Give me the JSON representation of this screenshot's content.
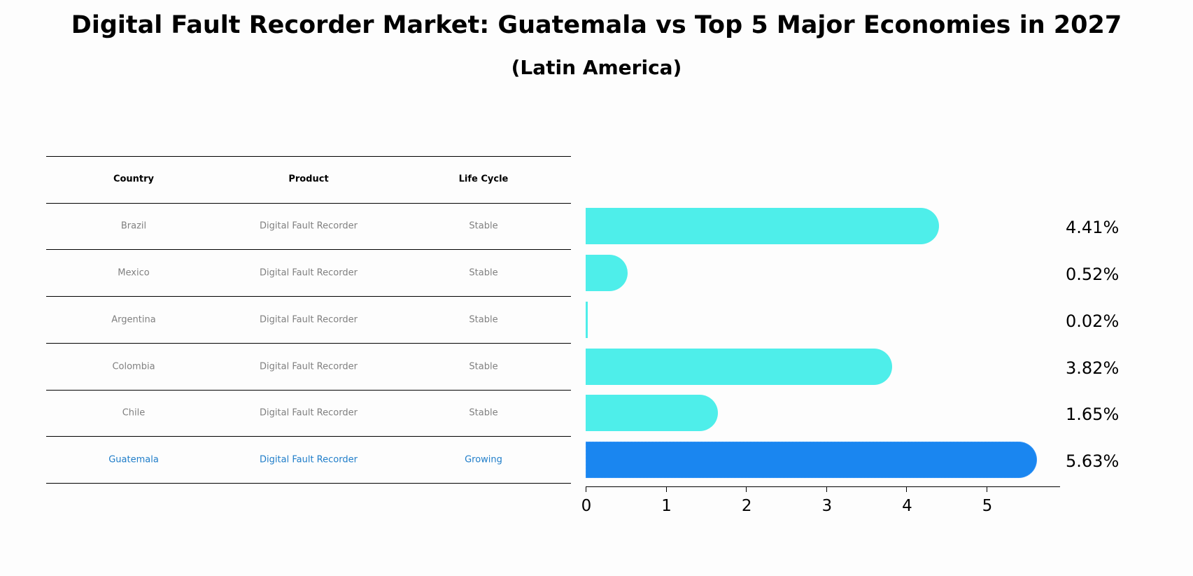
{
  "header": {
    "title": "Digital Fault Recorder Market: Guatemala vs Top 5 Major Economies in 2027",
    "subtitle": "(Latin America)"
  },
  "table": {
    "columns": [
      "Country",
      "Product",
      "Life Cycle"
    ],
    "rows": [
      {
        "country": "Brazil",
        "product": "Digital Fault Recorder",
        "life_cycle": "Stable",
        "highlight": false
      },
      {
        "country": "Mexico",
        "product": "Digital Fault Recorder",
        "life_cycle": "Stable",
        "highlight": false
      },
      {
        "country": "Argentina",
        "product": "Digital Fault Recorder",
        "life_cycle": "Stable",
        "highlight": false
      },
      {
        "country": "Colombia",
        "product": "Digital Fault Recorder",
        "life_cycle": "Stable",
        "highlight": false
      },
      {
        "country": "Chile",
        "product": "Digital Fault Recorder",
        "life_cycle": "Stable",
        "highlight": false
      },
      {
        "country": "Guatemala",
        "product": "Digital Fault Recorder",
        "life_cycle": "Growing",
        "highlight": true
      }
    ]
  },
  "colors": {
    "bar": "#4eeeea",
    "highlight_bar": "#1a86f0",
    "highlight_text": "#1f7dc9",
    "muted_text": "#808080"
  },
  "chart_data": {
    "type": "bar",
    "orientation": "horizontal",
    "title": "Digital Fault Recorder Market: Guatemala vs Top 5 Major Economies in 2027",
    "subtitle": "(Latin America)",
    "categories": [
      "Brazil",
      "Mexico",
      "Argentina",
      "Colombia",
      "Chile",
      "Guatemala"
    ],
    "values": [
      4.41,
      0.52,
      0.02,
      3.82,
      1.65,
      5.63
    ],
    "value_labels": [
      "4.41%",
      "0.52%",
      "0.02%",
      "3.82%",
      "1.65%",
      "5.63%"
    ],
    "highlight": "Guatemala",
    "xlabel": "",
    "ylabel": "",
    "xticks": [
      "0",
      "1",
      "2",
      "3",
      "4",
      "5"
    ],
    "xlim": [
      0,
      5.9
    ],
    "grid": false,
    "legend": null
  }
}
